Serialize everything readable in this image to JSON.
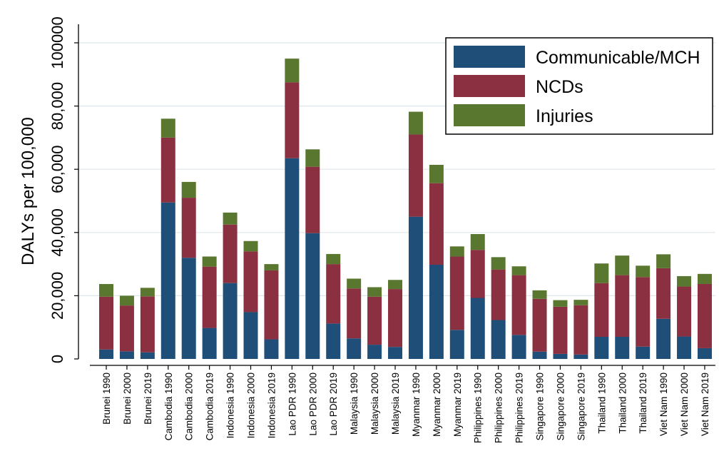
{
  "chart_data": {
    "type": "bar",
    "stacked": true,
    "title": "",
    "xlabel": "",
    "ylabel": "DALYs per 100,000",
    "ylim": [
      0,
      100000
    ],
    "yticks": [
      0,
      20000,
      40000,
      60000,
      80000,
      100000
    ],
    "ytick_labels": [
      "0",
      "20,000",
      "40,000",
      "60,000",
      "80,000",
      "100000"
    ],
    "grid": true,
    "legend_position": "top-right",
    "categories": [
      "Brunei 1990",
      "Brunei 2000",
      "Brunei 2019",
      "Cambodia 1990",
      "Cambodia 2000",
      "Cambodia 2019",
      "Indonesia 1990",
      "Indonesia 2000",
      "Indonesia 2019",
      "Lao PDR 1990",
      "Lao PDR 2000",
      "Lao PDR 2019",
      "Malaysia 1990",
      "Malaysia 2000",
      "Malaysia 2019",
      "Myanmar 1990",
      "Myanmar 2000",
      "Myanmar 2019",
      "Philippines 1990",
      "Philippines 2000",
      "Philippines 2019",
      "Singapore 1990",
      "Singapore 2000",
      "Singapore 2019",
      "Thailand 1990",
      "Thailand 2000",
      "Thailand 2019",
      "Viet Nam 1990",
      "Viet Nam 2000",
      "Viet Nam 2019"
    ],
    "series": [
      {
        "name": "Communicable/MCH",
        "color": "#1f4e79",
        "values": [
          3000,
          2400,
          2100,
          49500,
          32000,
          9800,
          24000,
          14800,
          6200,
          63500,
          39800,
          11200,
          6500,
          4500,
          3800,
          45000,
          29800,
          9200,
          19300,
          12300,
          7600,
          2300,
          1600,
          1400,
          7000,
          7000,
          3900,
          12700,
          7100,
          3400
        ]
      },
      {
        "name": "NCDs",
        "color": "#8b3040",
        "values": [
          16700,
          14500,
          17700,
          20500,
          19000,
          19400,
          18500,
          19200,
          21800,
          24000,
          21000,
          18800,
          15800,
          15200,
          18300,
          26000,
          25800,
          23200,
          15200,
          16000,
          18900,
          16700,
          14900,
          15600,
          17000,
          19500,
          22000,
          16000,
          15800,
          20300
        ]
      },
      {
        "name": "Injuries",
        "color": "#5a7730",
        "values": [
          4000,
          3100,
          2700,
          6000,
          5000,
          3200,
          3800,
          3300,
          2000,
          7500,
          5500,
          3200,
          3100,
          3000,
          2900,
          7200,
          5800,
          3200,
          5000,
          3900,
          2800,
          2700,
          2100,
          1700,
          6200,
          6200,
          3600,
          4400,
          3300,
          3200
        ]
      }
    ]
  }
}
